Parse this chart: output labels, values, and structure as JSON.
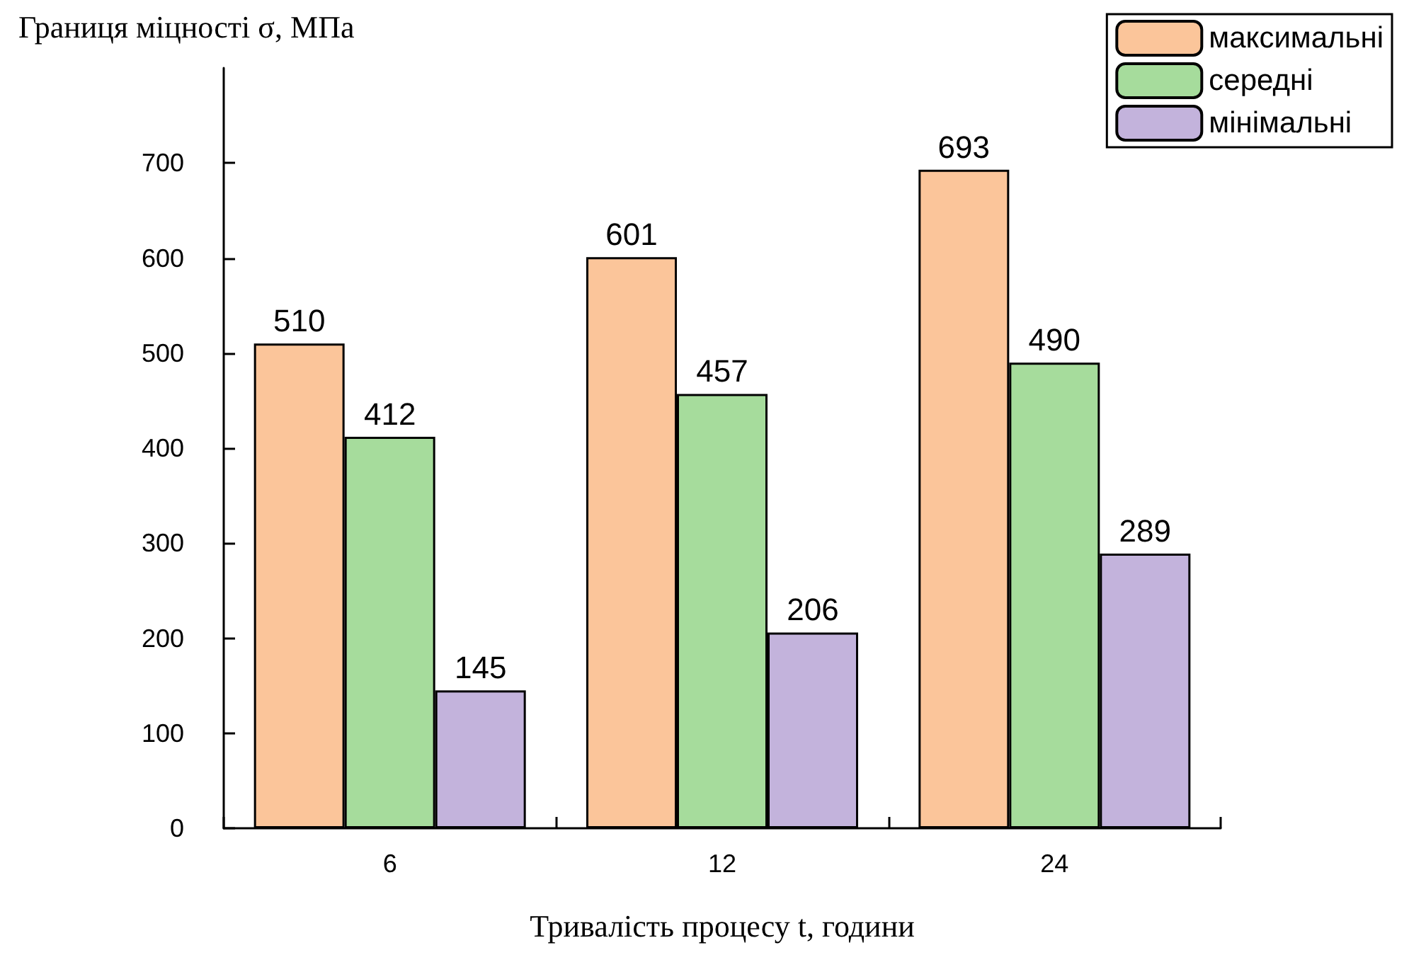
{
  "chart_data": {
    "type": "bar",
    "ylabel": "Границя міцності σ, МПа",
    "xlabel": "Тривалість процесу t, години",
    "categories": [
      "6",
      "12",
      "24"
    ],
    "series": [
      {
        "name": "максимальні",
        "color": "#fbc59a",
        "values": [
          510,
          601,
          693
        ]
      },
      {
        "name": "середні",
        "color": "#a6dc9c",
        "values": [
          412,
          457,
          490
        ]
      },
      {
        "name": "мінімальні",
        "color": "#c3b3dc",
        "values": [
          145,
          206,
          289
        ]
      }
    ],
    "ylim": [
      0,
      800
    ],
    "yticks": [
      0,
      100,
      200,
      300,
      400,
      500,
      600,
      700
    ],
    "data_labels": true,
    "legend": "top right",
    "grid": false
  }
}
